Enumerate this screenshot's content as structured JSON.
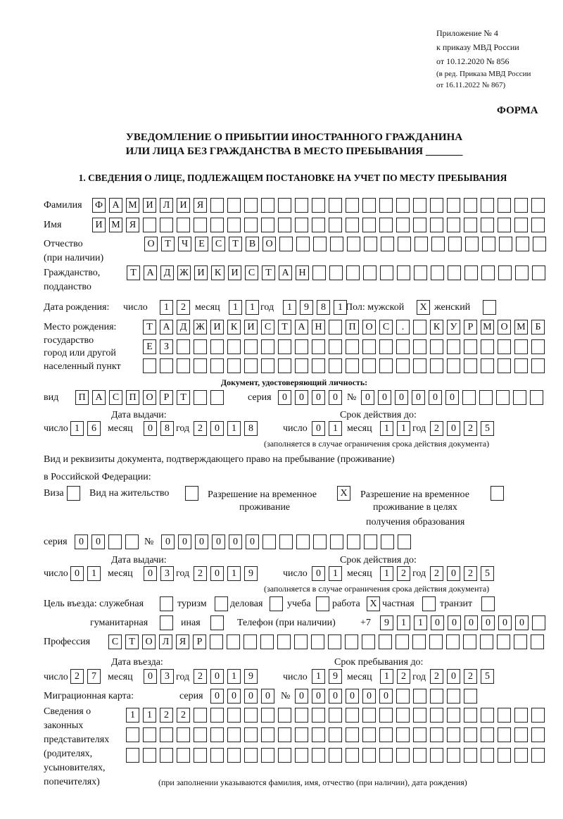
{
  "header": {
    "appendix": [
      "Приложение № 4",
      "к приказу МВД России",
      "от 10.12.2020 № 856"
    ],
    "revision": [
      "(в ред. Приказа МВД России",
      "от 16.11.2022 № 867)"
    ],
    "form_label": "ФОРМА",
    "title": [
      "УВЕДОМЛЕНИЕ О ПРИБЫТИИ ИНОСТРАННОГО ГРАЖДАНИНА",
      "ИЛИ ЛИЦА БЕЗ ГРАЖДАНСТВА В МЕСТО ПРЕБЫВАНИЯ _______"
    ],
    "section": "1. СВЕДЕНИЯ О ЛИЦЕ, ПОДЛЕЖАЩЕМ ПОСТАНОВКЕ НА УЧЕТ ПО МЕСТУ ПРЕБЫВАНИЯ"
  },
  "labels": {
    "surname": "Фамилия",
    "name": "Имя",
    "patronymic": "Отчество",
    "patronymic_note": "(при наличии)",
    "citizenship": "Гражданство,",
    "citizenship2": "подданство",
    "birth_date": "Дата рождения:",
    "day": "число",
    "month": "месяц",
    "year": "год",
    "sex": "Пол: мужской",
    "female": "женский",
    "birth_place": [
      "Место рождения:",
      "государство",
      "город или другой",
      "населенный пункт"
    ],
    "id_doc": "Документ, удостоверяющий личность:",
    "kind": "вид",
    "series": "серия",
    "number": "№",
    "issue_date": "Дата выдачи:",
    "valid_until": "Срок действия до:",
    "validity_note": "(заполняется в случае ограничения срока действия документа)",
    "residence_doc": [
      "Вид и реквизиты документа, подтверждающего право на пребывание (проживание)",
      "в Российской Федерации:"
    ],
    "visa": "Виза",
    "residence_permit": "Вид на жительство",
    "temp_residence": [
      "Разрешение на временное",
      "проживание"
    ],
    "temp_residence_edu": [
      "Разрешение на временное",
      "проживание в целях",
      "получения образования"
    ],
    "purpose": "Цель въезда: служебная",
    "tourism": "туризм",
    "business": "деловая",
    "study": "учеба",
    "work": "работа",
    "private": "частная",
    "transit": "транзит",
    "humanitarian": "гуманитарная",
    "other": "иная",
    "phone": "Телефон (при наличии)",
    "phone_prefix": "+7",
    "profession": "Профессия",
    "entry_date": "Дата въезда:",
    "stay_until": "Срок пребывания до:",
    "migration_card": "Миграционная карта:",
    "representatives": [
      "Сведения о",
      "законных",
      "представителях",
      "(родителях,",
      "усыновителях,",
      "попечителях)"
    ],
    "representatives_note": "(при заполнении указываются фамилия, имя, отчество (при наличии), дата рождения)"
  },
  "fields": {
    "surname": "ФАМИЛИЯ",
    "name": "ИМЯ",
    "patronymic": "ОТЧЕСТВО",
    "citizenship": "ТАДЖИКИСТАН",
    "birth_day": "12",
    "birth_month": "11",
    "birth_year": "1981",
    "sex_male": "X",
    "sex_female": "",
    "birth_place_1": "ТАДЖИКИСТАН ПОС. КУРМОМБ",
    "birth_place_2": "ЕЗ",
    "birth_place_3": "",
    "doc_kind": "ПАСПОРТ",
    "doc_series": "0000",
    "doc_number": "000000",
    "doc_issue_day": "16",
    "doc_issue_month": "08",
    "doc_issue_year": "2018",
    "doc_valid_day": "01",
    "doc_valid_month": "11",
    "doc_valid_year": "2025",
    "visa": "",
    "residence_permit": "",
    "temp_residence": "X",
    "temp_residence_edu": "",
    "res_series": "00",
    "res_number": "000000",
    "res_issue_day": "01",
    "res_issue_month": "03",
    "res_issue_year": "2019",
    "res_valid_day": "01",
    "res_valid_month": "12",
    "res_valid_year": "2025",
    "purpose_service": "",
    "purpose_tourism": "",
    "purpose_business": "",
    "purpose_study": "",
    "purpose_work": "X",
    "purpose_private": "",
    "purpose_transit": "",
    "purpose_humanitarian": "",
    "purpose_other": "",
    "phone": "911000000",
    "profession": "СТОЛЯР",
    "entry_day": "27",
    "entry_month": "03",
    "entry_year": "2019",
    "stay_day": "19",
    "stay_month": "12",
    "stay_year": "2025",
    "mig_series": "0000",
    "mig_number": "000000",
    "rep_1": "1122",
    "rep_2": "",
    "rep_3": ""
  }
}
